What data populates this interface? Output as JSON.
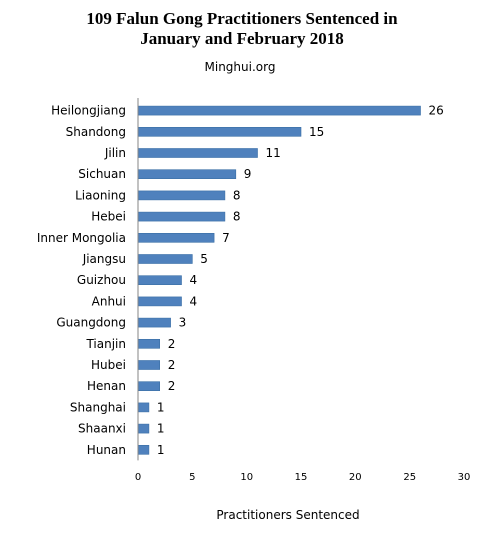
{
  "chart_data": {
    "type": "bar",
    "orientation": "horizontal",
    "title_lines": [
      "109 Falun Gong Practitioners Sentenced in",
      "January and February 2018"
    ],
    "subtitle": "Minghui.org",
    "xlabel": "Practitioners Sentenced",
    "ylabel": "",
    "categories": [
      "Heilongjiang",
      "Shandong",
      "Jilin",
      "Sichuan",
      "Liaoning",
      "Hebei",
      "Inner Mongolia",
      "Jiangsu",
      "Guizhou",
      "Anhui",
      "Guangdong",
      "Tianjin",
      "Hubei",
      "Henan",
      "Shanghai",
      "Shaanxi",
      "Hunan"
    ],
    "values": [
      26,
      15,
      11,
      9,
      8,
      8,
      7,
      5,
      4,
      4,
      3,
      2,
      2,
      2,
      1,
      1,
      1
    ],
    "xlim": [
      0,
      30
    ],
    "xticks": [
      0,
      5,
      10,
      15,
      20,
      25,
      30
    ],
    "grid": false,
    "legend": "none",
    "bar_color": "#4f81bd",
    "bar_edge_color": "#3a6ea5"
  }
}
